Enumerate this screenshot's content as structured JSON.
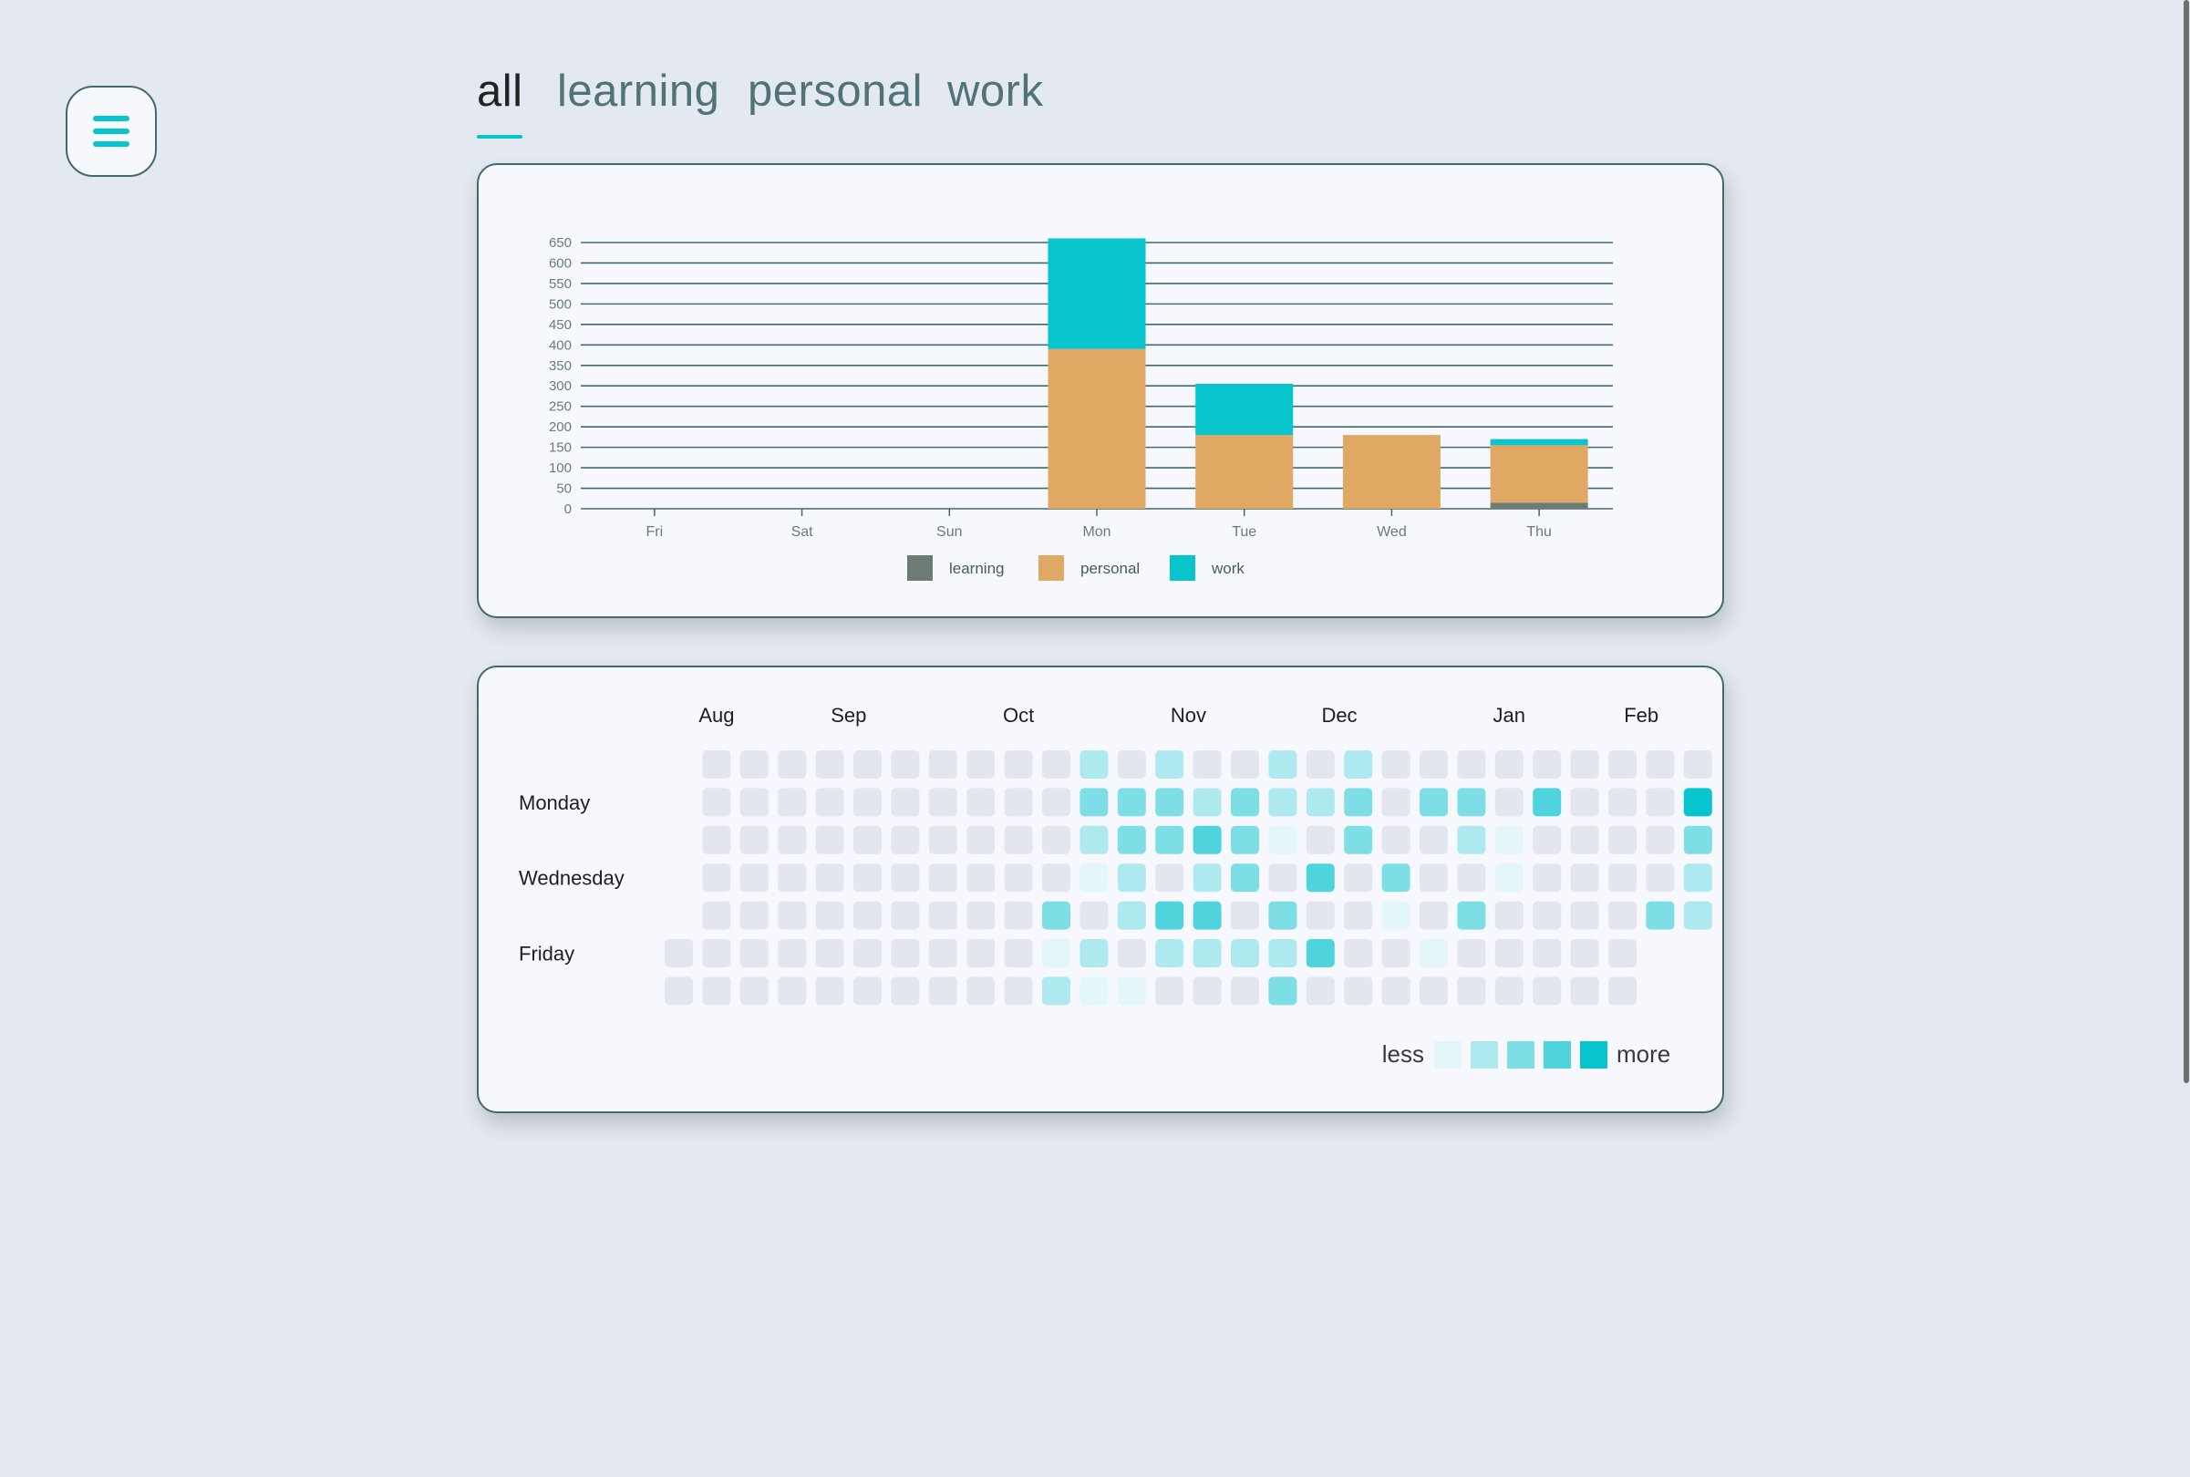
{
  "tabs": [
    {
      "label": "all",
      "active": true
    },
    {
      "label": "learning",
      "active": false
    },
    {
      "label": "personal",
      "active": false
    },
    {
      "label": "work",
      "active": false
    }
  ],
  "colors": {
    "accent": "#07c4cd",
    "learning": "#6d7b75",
    "personal": "#e0a862",
    "work": "#07c4cd",
    "grid": "#3d6b70",
    "empty_cell": "#e4e6ef"
  },
  "chart_data": {
    "type": "bar",
    "stacked": true,
    "categories": [
      "Fri",
      "Sat",
      "Sun",
      "Mon",
      "Tue",
      "Wed",
      "Thu"
    ],
    "series": [
      {
        "name": "learning",
        "values": [
          0,
          0,
          0,
          0,
          0,
          0,
          15
        ]
      },
      {
        "name": "personal",
        "values": [
          0,
          0,
          0,
          390,
          180,
          180,
          140
        ]
      },
      {
        "name": "work",
        "values": [
          0,
          0,
          0,
          270,
          125,
          0,
          15
        ]
      }
    ],
    "yticks": [
      0,
      50,
      100,
      150,
      200,
      250,
      300,
      350,
      400,
      450,
      500,
      550,
      600,
      650
    ],
    "ylim": [
      0,
      650
    ],
    "grid": true,
    "legend": "bottom-center"
  },
  "heatmap": {
    "months": [
      "Aug",
      "Sep",
      "Oct",
      "Nov",
      "Dec",
      "Jan",
      "Feb"
    ],
    "month_columns": [
      1,
      4.5,
      9,
      13.5,
      17.5,
      22,
      25.5
    ],
    "day_labels": [
      {
        "label": "Monday",
        "row": 1
      },
      {
        "label": "Wednesday",
        "row": 3
      },
      {
        "label": "Friday",
        "row": 5
      }
    ],
    "legend_less": "less",
    "legend_more": "more",
    "levels": [
      "#e4e6ef",
      "#e3f6fa",
      "#aee9f0",
      "#7ddee6",
      "#4fd3dc",
      "#07c4cd"
    ],
    "grid": [
      "-000000000020200202000000000",
      "-000000000033323223033040005",
      "-000000000023343103002100003",
      "-000000000012023040300100002",
      "-000000000302440300103000032",
      "00000000001202222400100000-",
      "00000000002110003000000000-"
    ]
  }
}
